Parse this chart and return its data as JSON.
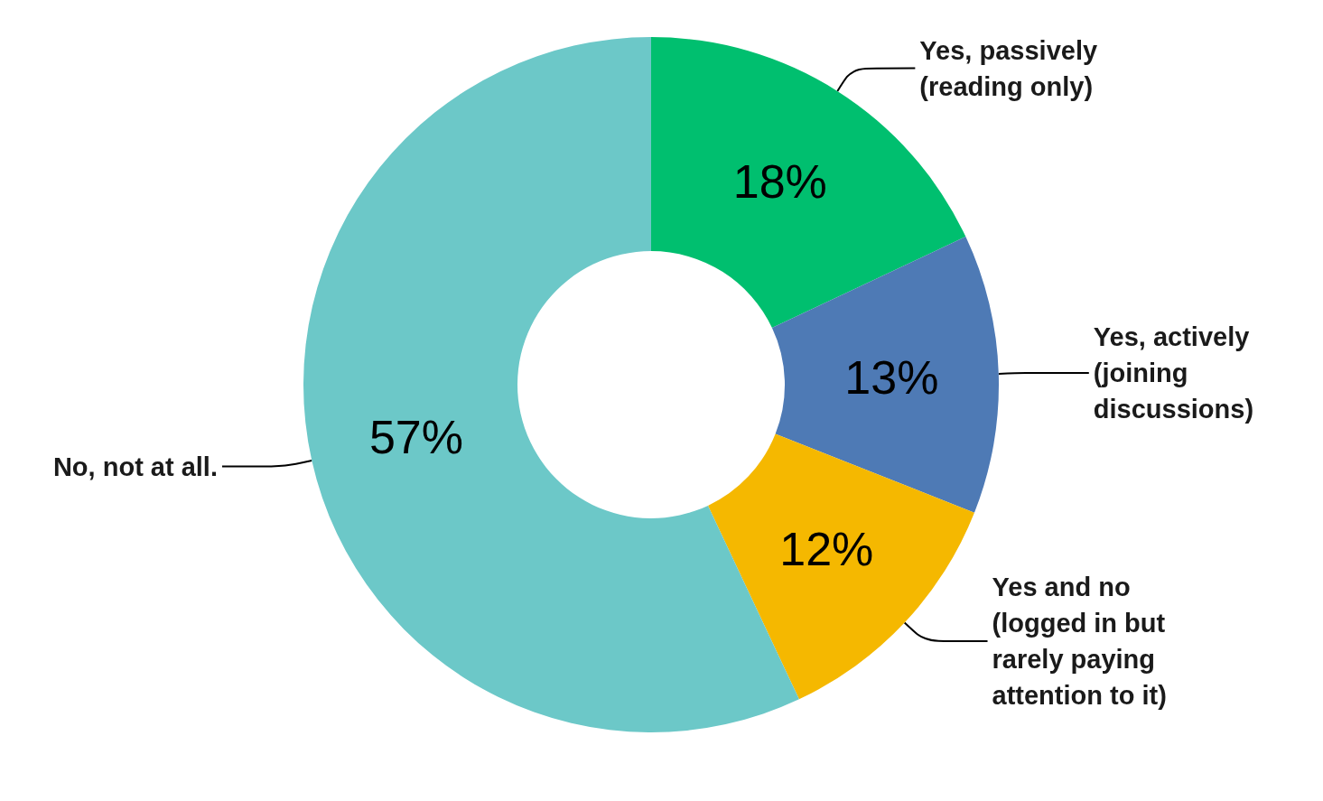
{
  "chart_data": {
    "type": "donut",
    "categories": [
      "Yes, passively (reading only)",
      "Yes, actively (joining discussions)",
      "Yes and no (logged in but rarely paying attention to it)",
      "No, not at all."
    ],
    "values": [
      18,
      13,
      12,
      57
    ],
    "colors": [
      "#00bf6f",
      "#4e7ab5",
      "#f5b800",
      "#6cc8c8"
    ],
    "value_labels": [
      "18%",
      "13%",
      "12%",
      "57%"
    ]
  }
}
